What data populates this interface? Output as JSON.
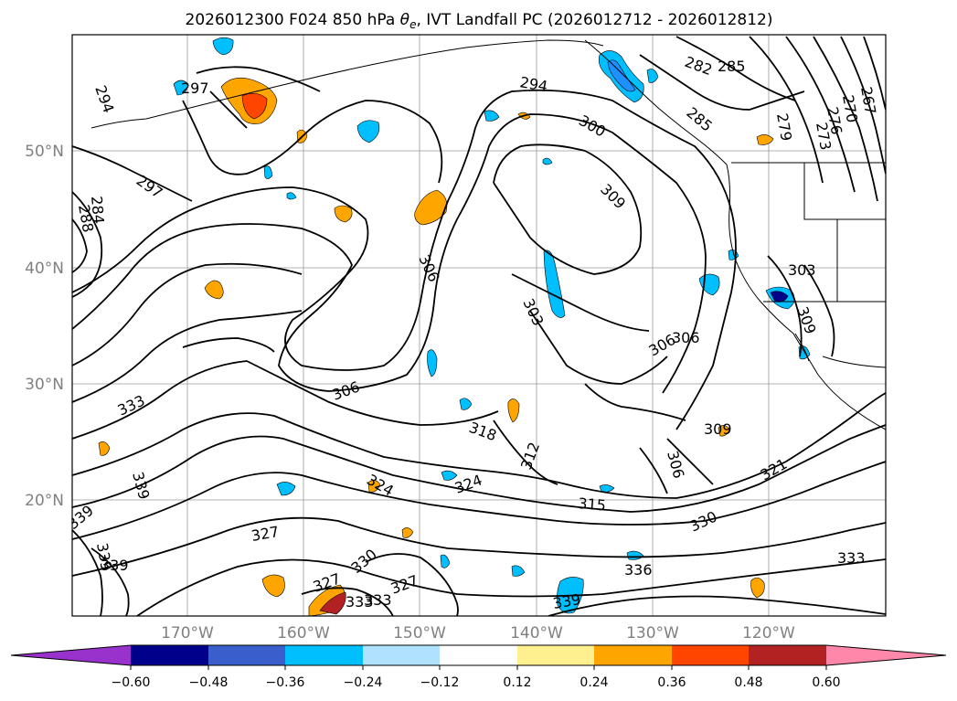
{
  "title_main": "2026012300 F024 850 hPa ",
  "title_theta": "θ",
  "title_sub": "e",
  "title_rest": ", IVT Landfall PC (2026012712 - 2026012812)",
  "lat_ticks": [
    "50°N",
    "40°N",
    "30°N",
    "20°N"
  ],
  "lon_ticks": [
    "170°W",
    "160°W",
    "150°W",
    "140°W",
    "130°W",
    "120°W"
  ],
  "colorbar": {
    "colors": [
      "#9932cc",
      "#00008b",
      "#3a5fcd",
      "#00bfff",
      "#b0e2ff",
      "#ffffff",
      "#fff08f",
      "#ffa500",
      "#ff4500",
      "#b22222",
      "#ff88aa"
    ],
    "labels": [
      "−0.60",
      "−0.48",
      "−0.36",
      "−0.24",
      "−0.12",
      "0.12",
      "0.24",
      "0.36",
      "0.48",
      "0.60"
    ]
  },
  "contour_labels": [
    "294",
    "297",
    "297",
    "288",
    "284",
    "294",
    "300",
    "309",
    "306",
    "303",
    "306",
    "306",
    "306",
    "303",
    "309",
    "282",
    "285",
    "285",
    "279",
    "267",
    "270",
    "276",
    "273",
    "333",
    "339",
    "339",
    "339",
    "339",
    "327",
    "324",
    "324",
    "330",
    "327",
    "327",
    "333",
    "333",
    "318",
    "312",
    "315",
    "309",
    "306",
    "321",
    "330",
    "336",
    "339",
    "333"
  ]
}
